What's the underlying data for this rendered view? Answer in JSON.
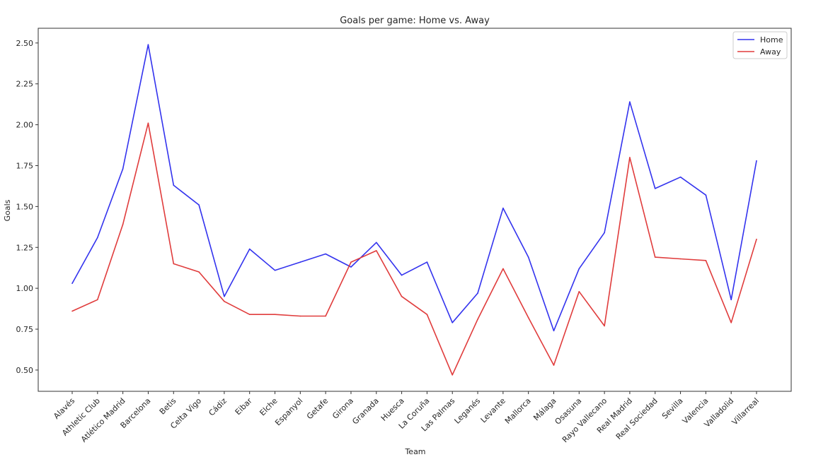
{
  "chart_data": {
    "type": "line",
    "title": "Goals per game: Home vs. Away",
    "xlabel": "Team",
    "ylabel": "Goals",
    "categories": [
      "Alavés",
      "Athletic Club",
      "Atlético Madrid",
      "Barcelona",
      "Betis",
      "Celta Vigo",
      "Cádiz",
      "Eibar",
      "Elche",
      "Espanyol",
      "Getafe",
      "Girona",
      "Granada",
      "Huesca",
      "La Coruña",
      "Las Palmas",
      "Leganés",
      "Levante",
      "Mallorca",
      "Málaga",
      "Osasuna",
      "Rayo Vallecano",
      "Real Madrid",
      "Real Sociedad",
      "Sevilla",
      "Valencia",
      "Valladolid",
      "Villarreal"
    ],
    "series": [
      {
        "name": "Home",
        "color": "#3333ee",
        "values": [
          1.03,
          1.31,
          1.73,
          2.49,
          1.63,
          1.51,
          0.95,
          1.24,
          1.11,
          1.16,
          1.21,
          1.13,
          1.28,
          1.08,
          1.16,
          0.79,
          0.97,
          1.49,
          1.19,
          0.74,
          1.12,
          1.34,
          2.14,
          1.61,
          1.68,
          1.57,
          0.93,
          1.78
        ]
      },
      {
        "name": "Away",
        "color": "#e03c3c",
        "values": [
          0.86,
          0.93,
          1.39,
          2.01,
          1.15,
          1.1,
          0.92,
          0.84,
          0.84,
          0.83,
          0.83,
          1.16,
          1.23,
          0.95,
          0.84,
          0.47,
          0.81,
          1.12,
          0.82,
          0.53,
          0.98,
          0.77,
          1.8,
          1.19,
          1.18,
          1.17,
          0.79,
          1.3
        ]
      }
    ],
    "ylim": [
      0.37,
      2.59
    ],
    "yticks": [
      "0.50",
      "0.75",
      "1.00",
      "1.25",
      "1.50",
      "1.75",
      "2.00",
      "2.25",
      "2.50"
    ],
    "grid": false,
    "legend_position": "top-right"
  }
}
